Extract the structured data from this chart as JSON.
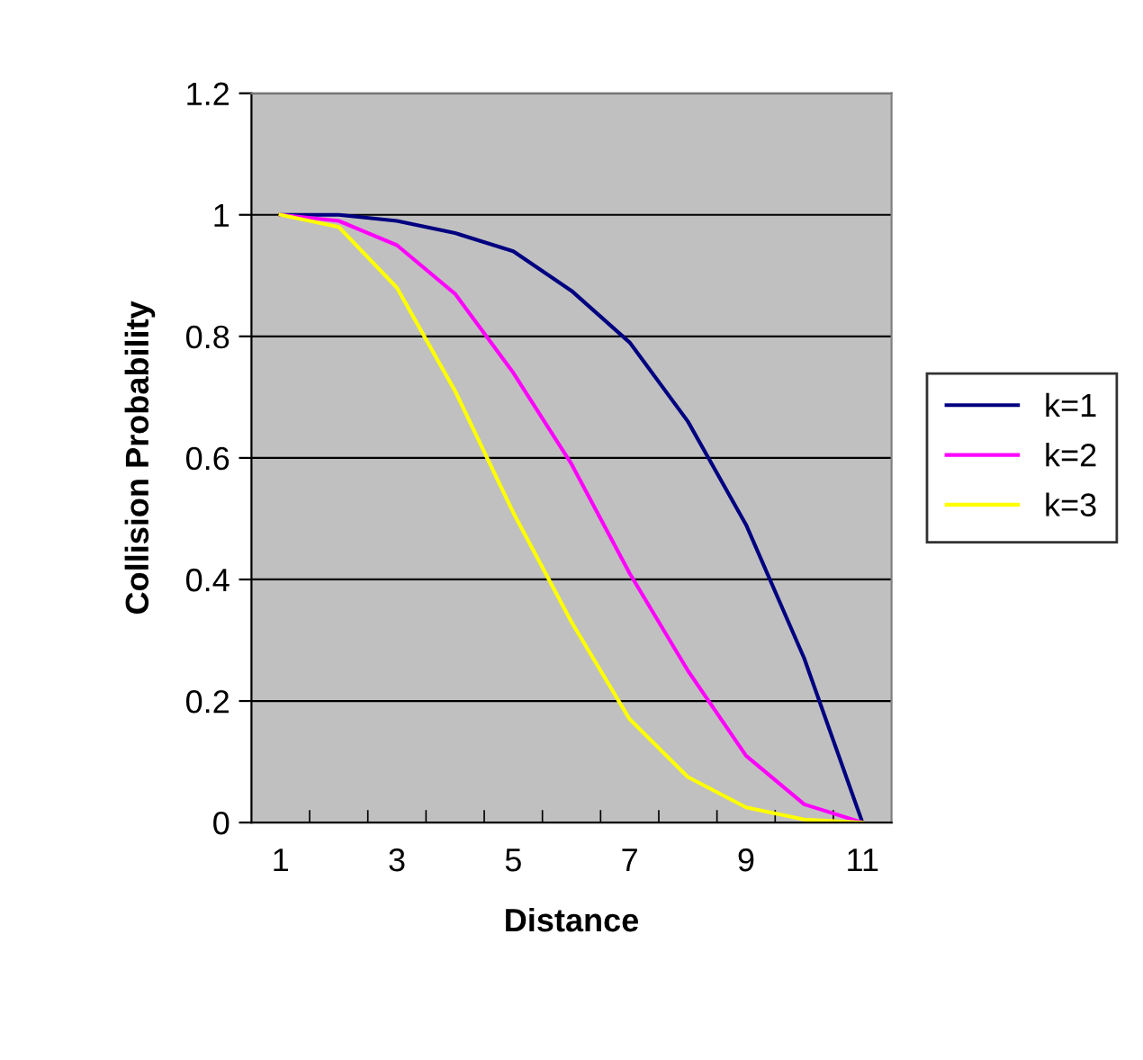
{
  "chart_data": {
    "type": "line",
    "xlabel": "Distance",
    "ylabel": "Collision Probability",
    "categories": [
      "1",
      null,
      "3",
      null,
      "5",
      null,
      "7",
      null,
      "9",
      null,
      "11"
    ],
    "series": [
      {
        "name": "k=1",
        "color": "#000080",
        "values": [
          1.0,
          1.0,
          0.99,
          0.97,
          0.94,
          0.875,
          0.79,
          0.66,
          0.49,
          0.27,
          0.0
        ]
      },
      {
        "name": "k=2",
        "color": "#ff00ff",
        "values": [
          1.0,
          0.99,
          0.95,
          0.87,
          0.74,
          0.59,
          0.41,
          0.25,
          0.11,
          0.03,
          0.0
        ]
      },
      {
        "name": "k=3",
        "color": "#ffff00",
        "values": [
          1.0,
          0.98,
          0.88,
          0.71,
          0.51,
          0.33,
          0.17,
          0.075,
          0.025,
          0.005,
          0.0
        ]
      }
    ],
    "ylim": [
      0,
      1.2
    ],
    "yticks": [
      0,
      0.2,
      0.4,
      0.6,
      0.8,
      1,
      1.2
    ],
    "grid": "y",
    "legend": "right",
    "marker": "none",
    "line_style": "solid"
  }
}
